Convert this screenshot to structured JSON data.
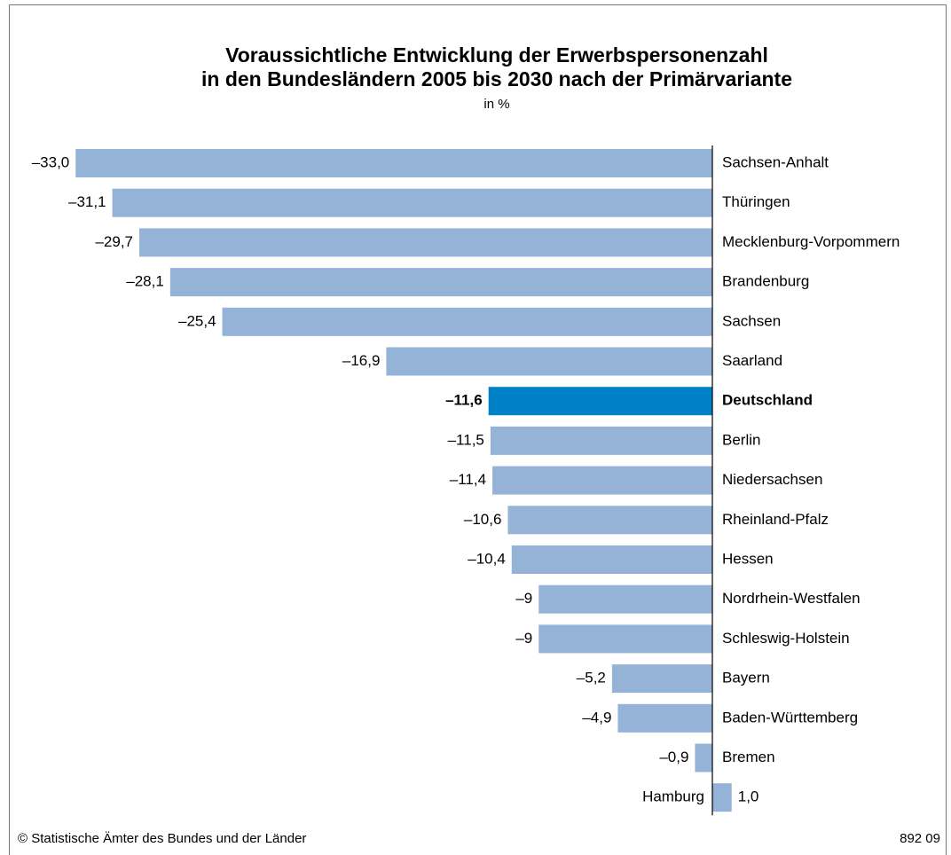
{
  "chart_data": {
    "type": "hbar",
    "title": "Voraussichtliche Entwicklung der Erwerbspersonenzahl",
    "title_line2": "in den Bundesländern 2005 bis 2030 nach der Primärvariante",
    "subtitle": "in %",
    "categories": [
      "Sachsen-Anhalt",
      "Thüringen",
      "Mecklenburg-Vorpommern",
      "Brandenburg",
      "Sachsen",
      "Saarland",
      "Deutschland",
      "Berlin",
      "Niedersachsen",
      "Rheinland-Pfalz",
      "Hessen",
      "Nordrhein-Westfalen",
      "Schleswig-Holstein",
      "Bayern",
      "Baden-Württemberg",
      "Bremen",
      "Hamburg"
    ],
    "values": [
      -33.0,
      -31.1,
      -29.7,
      -28.1,
      -25.4,
      -16.9,
      -11.6,
      -11.5,
      -11.4,
      -10.6,
      -10.4,
      -9,
      -9,
      -5.2,
      -4.9,
      -0.9,
      1.0
    ],
    "value_labels": [
      "–33,0",
      "–31,1",
      "–29,7",
      "–28,1",
      "–25,4",
      "–16,9",
      "–11,6",
      "–11,5",
      "–11,4",
      "–10,6",
      "–10,4",
      "–9",
      "–9",
      "–5,2",
      "–4,9",
      "–0,9",
      "1,0"
    ],
    "color": "#95b3d7",
    "highlight_color": "#0080c6",
    "colors": [
      "#95b3d7",
      "#95b3d7",
      "#95b3d7",
      "#95b3d7",
      "#95b3d7",
      "#95b3d7",
      "#0080c6",
      "#95b3d7",
      "#95b3d7",
      "#95b3d7",
      "#95b3d7",
      "#95b3d7",
      "#95b3d7",
      "#95b3d7",
      "#95b3d7",
      "#95b3d7",
      "#95b3d7"
    ],
    "source": "© Statistische Ämter des Bundes und der Länder",
    "code": "892 09"
  }
}
